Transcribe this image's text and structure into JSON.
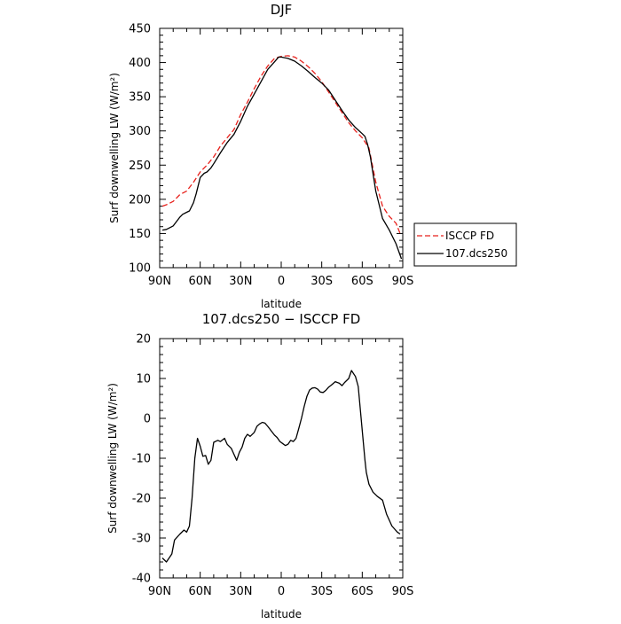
{
  "chart_data": [
    {
      "type": "line",
      "title": "DJF",
      "xlabel": "latitude",
      "ylabel": "Surf downwelling LW (W/m²)",
      "ylim": [
        100,
        450
      ],
      "yticks": [
        100,
        150,
        200,
        250,
        300,
        350,
        400,
        450
      ],
      "xlim": [
        90,
        -90
      ],
      "xticks": [
        90,
        60,
        30,
        0,
        -30,
        -60,
        -90
      ],
      "xtick_labels": [
        "90N",
        "60N",
        "30N",
        "0",
        "30S",
        "60S",
        "90S"
      ],
      "legend_placement": "right",
      "grid": false,
      "series": [
        {
          "name": "ISCCP FD",
          "color": "#e8211c",
          "dash": "dashed",
          "x": [
            88,
            85,
            80,
            75,
            70,
            65,
            60,
            55,
            50,
            45,
            40,
            35,
            30,
            25,
            20,
            15,
            10,
            5,
            0,
            -5,
            -10,
            -15,
            -20,
            -25,
            -30,
            -35,
            -40,
            -45,
            -50,
            -55,
            -60,
            -65,
            -70,
            -75,
            -80,
            -85,
            -88
          ],
          "y": [
            190,
            192,
            197,
            207,
            212,
            225,
            240,
            250,
            262,
            278,
            290,
            302,
            324,
            342,
            362,
            380,
            395,
            406,
            409,
            410,
            408,
            402,
            394,
            384,
            372,
            357,
            342,
            327,
            312,
            300,
            290,
            275,
            225,
            190,
            175,
            165,
            150
          ]
        },
        {
          "name": "107.dcs250",
          "color": "#000000",
          "dash": "solid",
          "x": [
            88,
            85,
            80,
            75,
            73,
            70,
            68,
            65,
            63,
            60,
            57,
            55,
            52,
            50,
            45,
            40,
            35,
            30,
            25,
            20,
            15,
            10,
            5,
            2,
            0,
            -5,
            -10,
            -15,
            -20,
            -25,
            -30,
            -35,
            -40,
            -45,
            -50,
            -55,
            -60,
            -62,
            -64,
            -66,
            -70,
            -75,
            -80,
            -85,
            -89
          ],
          "y": [
            155,
            156,
            161,
            174,
            178,
            181,
            183,
            195,
            208,
            232,
            238,
            240,
            246,
            252,
            268,
            283,
            295,
            314,
            336,
            354,
            372,
            390,
            401,
            408,
            408,
            406,
            402,
            395,
            387,
            378,
            370,
            360,
            345,
            330,
            316,
            305,
            296,
            292,
            280,
            262,
            212,
            172,
            155,
            135,
            113
          ]
        }
      ]
    },
    {
      "type": "line",
      "title": "107.dcs250 − ISCCP FD",
      "xlabel": "latitude",
      "ylabel": "Surf downwelling LW (W/m²)",
      "ylim": [
        -40,
        20
      ],
      "yticks": [
        -40,
        -30,
        -20,
        -10,
        0,
        10,
        20
      ],
      "xlim": [
        90,
        -90
      ],
      "xticks": [
        90,
        60,
        30,
        0,
        -30,
        -60,
        -90
      ],
      "xtick_labels": [
        "90N",
        "60N",
        "30N",
        "0",
        "30S",
        "60S",
        "90S"
      ],
      "grid": false,
      "series": [
        {
          "name": "",
          "color": "#000000",
          "dash": "solid",
          "x": [
            88,
            85,
            81,
            79,
            75,
            72,
            70,
            68,
            66,
            64,
            62,
            60,
            58,
            56,
            54,
            52,
            50,
            47,
            45,
            42,
            40,
            37,
            35,
            33,
            31,
            29,
            27,
            25,
            23,
            20,
            18,
            16,
            14,
            12,
            10,
            7,
            5,
            3,
            1,
            -1,
            -3,
            -5,
            -7,
            -9,
            -11,
            -13,
            -15,
            -17,
            -19,
            -21,
            -23,
            -25,
            -27,
            -29,
            -31,
            -33,
            -35,
            -37,
            -40,
            -43,
            -45,
            -47,
            -50,
            -52,
            -55,
            -57,
            -60,
            -62,
            -63,
            -65,
            -68,
            -71,
            -75,
            -78,
            -82,
            -86,
            -88
          ],
          "y": [
            -35,
            -36,
            -34,
            -30.5,
            -29,
            -28,
            -28.5,
            -27,
            -20,
            -10,
            -5,
            -7,
            -9.5,
            -9.3,
            -11.5,
            -10.5,
            -6,
            -5.5,
            -5.8,
            -5,
            -6.5,
            -7.5,
            -9,
            -10.5,
            -8.5,
            -7.2,
            -5,
            -4,
            -4.5,
            -3.5,
            -2,
            -1.4,
            -1,
            -1.2,
            -2,
            -3.3,
            -4.2,
            -4.8,
            -5.8,
            -6.3,
            -6.8,
            -6.5,
            -5.5,
            -5.8,
            -5,
            -2.5,
            0,
            3,
            5.5,
            7.1,
            7.6,
            7.7,
            7.3,
            6.6,
            6.5,
            7,
            7.8,
            8.3,
            9.2,
            8.8,
            8.2,
            9,
            10,
            12,
            10.5,
            8,
            -3,
            -10.5,
            -13.5,
            -16.5,
            -18.5,
            -19.5,
            -20.5,
            -24,
            -27,
            -28.5,
            -29
          ]
        }
      ]
    }
  ]
}
